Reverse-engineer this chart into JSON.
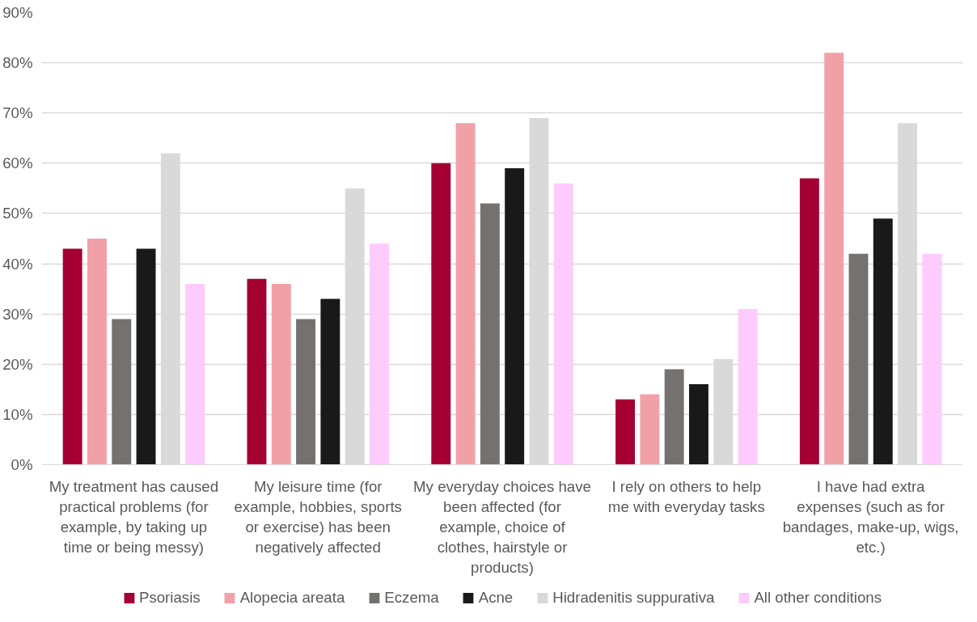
{
  "chart_data": {
    "type": "bar",
    "categories": [
      "My treatment has caused practical problems (for example, by taking up time or being messy)",
      "My leisure time (for example, hobbies, sports or exercise) has been negatively affected",
      "My everyday choices have been affected (for example, choice of clothes, hairstyle or products)",
      "I rely on others to help me with everyday tasks",
      "I have had extra expenses (such as for bandages, make-up, wigs, etc.)"
    ],
    "series": [
      {
        "name": "Psoriasis",
        "color": "#a50034",
        "values": [
          43,
          37,
          60,
          13,
          57
        ]
      },
      {
        "name": "Alopecia areata",
        "color": "#f2a0a8",
        "values": [
          45,
          36,
          68,
          14,
          82
        ]
      },
      {
        "name": "Eczema",
        "color": "#75716f",
        "values": [
          29,
          29,
          52,
          19,
          42
        ]
      },
      {
        "name": "Acne",
        "color": "#191919",
        "values": [
          43,
          33,
          59,
          16,
          49
        ]
      },
      {
        "name": "Hidradenitis suppurativa",
        "color": "#d9d9d9",
        "values": [
          62,
          55,
          69,
          21,
          68
        ]
      },
      {
        "name": "All other conditions",
        "color": "#fdcbfd",
        "values": [
          36,
          44,
          56,
          31,
          42
        ]
      }
    ],
    "ylim": [
      0,
      90
    ],
    "yticks": [
      {
        "value": 0,
        "label": "0%"
      },
      {
        "value": 10,
        "label": "10%"
      },
      {
        "value": 20,
        "label": "20%"
      },
      {
        "value": 30,
        "label": "30%"
      },
      {
        "value": 40,
        "label": "40%"
      },
      {
        "value": 50,
        "label": "50%"
      },
      {
        "value": 60,
        "label": "60%"
      },
      {
        "value": 70,
        "label": "70%"
      },
      {
        "value": 80,
        "label": "80%"
      },
      {
        "value": 90,
        "label": "90%"
      }
    ],
    "grid": "y",
    "legend": "bottom"
  }
}
